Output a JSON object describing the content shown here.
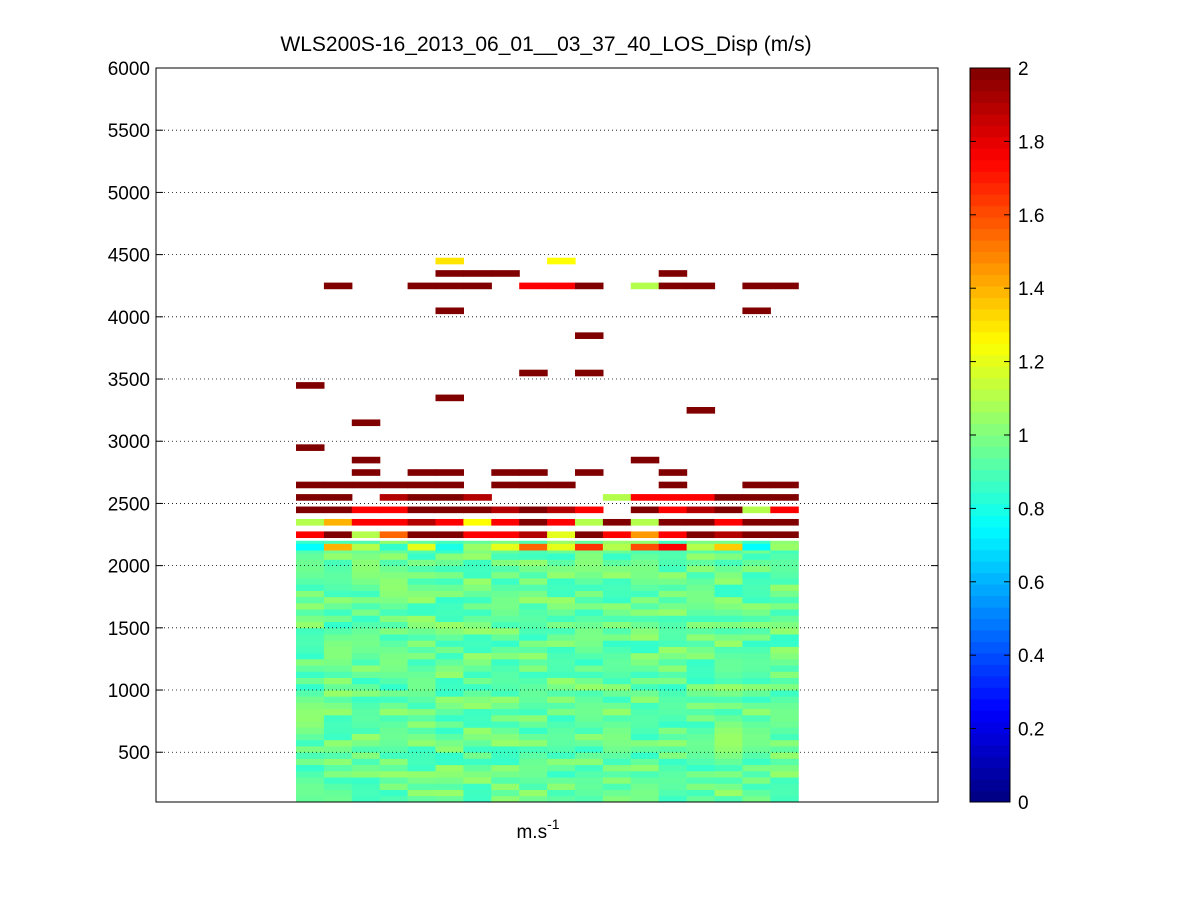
{
  "chart_data": {
    "type": "heatmap",
    "title": "WLS200S-16_2013_06_01__03_37_40_LOS_Disp (m/s)",
    "xlabel_base": "m.s",
    "xlabel_exp": "-1",
    "ylabel": "",
    "ylim": [
      100,
      6000
    ],
    "y_ticks": [
      "500",
      "1000",
      "1500",
      "2000",
      "2500",
      "3000",
      "3500",
      "4000",
      "4500",
      "5000",
      "5500",
      "6000"
    ],
    "grid": "horizontal dotted",
    "colormap": "jet",
    "clim": [
      0,
      2
    ],
    "colorbar_ticks": [
      "0",
      "0.2",
      "0.4",
      "0.6",
      "0.8",
      "1",
      "1.2",
      "1.4",
      "1.6",
      "1.8",
      "2"
    ],
    "columns": 18,
    "layer_thickness": 50,
    "dense_region": {
      "from": 100,
      "to": 2200,
      "typical_value": 0.95,
      "spread": 0.1
    },
    "cells": [
      {
        "col": 5,
        "y": 4450,
        "v": 1.3
      },
      {
        "col": 9,
        "y": 4450,
        "v": 1.25
      },
      {
        "col": 5,
        "y": 4350,
        "v": 2
      },
      {
        "col": 6,
        "y": 4350,
        "v": 2
      },
      {
        "col": 7,
        "y": 4350,
        "v": 2
      },
      {
        "col": 13,
        "y": 4350,
        "v": 2
      },
      {
        "col": 1,
        "y": 4250,
        "v": 2
      },
      {
        "col": 4,
        "y": 4250,
        "v": 2
      },
      {
        "col": 5,
        "y": 4250,
        "v": 2
      },
      {
        "col": 6,
        "y": 4250,
        "v": 2
      },
      {
        "col": 8,
        "y": 4250,
        "v": 1.75
      },
      {
        "col": 9,
        "y": 4250,
        "v": 1.75
      },
      {
        "col": 10,
        "y": 4250,
        "v": 2
      },
      {
        "col": 12,
        "y": 4250,
        "v": 1.1
      },
      {
        "col": 13,
        "y": 4250,
        "v": 2
      },
      {
        "col": 14,
        "y": 4250,
        "v": 2
      },
      {
        "col": 16,
        "y": 4250,
        "v": 2
      },
      {
        "col": 17,
        "y": 4250,
        "v": 2
      },
      {
        "col": 5,
        "y": 4050,
        "v": 2
      },
      {
        "col": 16,
        "y": 4050,
        "v": 2
      },
      {
        "col": 10,
        "y": 3850,
        "v": 2
      },
      {
        "col": 8,
        "y": 3550,
        "v": 2
      },
      {
        "col": 10,
        "y": 3550,
        "v": 2
      },
      {
        "col": 0,
        "y": 3450,
        "v": 2
      },
      {
        "col": 5,
        "y": 3350,
        "v": 2
      },
      {
        "col": 14,
        "y": 3250,
        "v": 2
      },
      {
        "col": 2,
        "y": 3150,
        "v": 2
      },
      {
        "col": 0,
        "y": 2950,
        "v": 2
      },
      {
        "col": 12,
        "y": 2850,
        "v": 2
      },
      {
        "col": 2,
        "y": 2850,
        "v": 2
      },
      {
        "col": 4,
        "y": 2750,
        "v": 2
      },
      {
        "col": 10,
        "y": 2750,
        "v": 2
      },
      {
        "col": 2,
        "y": 2750,
        "v": 2
      },
      {
        "col": 5,
        "y": 2750,
        "v": 2
      },
      {
        "col": 7,
        "y": 2750,
        "v": 2
      },
      {
        "col": 8,
        "y": 2750,
        "v": 2
      },
      {
        "col": 13,
        "y": 2750,
        "v": 2
      },
      {
        "col": 0,
        "y": 2650,
        "v": 2
      },
      {
        "col": 1,
        "y": 2650,
        "v": 2
      },
      {
        "col": 2,
        "y": 2650,
        "v": 2
      },
      {
        "col": 3,
        "y": 2650,
        "v": 2
      },
      {
        "col": 4,
        "y": 2650,
        "v": 2
      },
      {
        "col": 5,
        "y": 2650,
        "v": 2
      },
      {
        "col": 7,
        "y": 2650,
        "v": 2
      },
      {
        "col": 8,
        "y": 2650,
        "v": 2
      },
      {
        "col": 9,
        "y": 2650,
        "v": 2
      },
      {
        "col": 13,
        "y": 2650,
        "v": 2
      },
      {
        "col": 16,
        "y": 2650,
        "v": 2
      },
      {
        "col": 17,
        "y": 2650,
        "v": 2
      },
      {
        "col": 0,
        "y": 2550,
        "v": 2
      },
      {
        "col": 1,
        "y": 2550,
        "v": 2
      },
      {
        "col": 3,
        "y": 2550,
        "v": 1.9
      },
      {
        "col": 4,
        "y": 2550,
        "v": 2
      },
      {
        "col": 5,
        "y": 2550,
        "v": 2
      },
      {
        "col": 6,
        "y": 2550,
        "v": 1.9
      },
      {
        "col": 11,
        "y": 2550,
        "v": 1.1
      },
      {
        "col": 12,
        "y": 2550,
        "v": 1.75
      },
      {
        "col": 13,
        "y": 2550,
        "v": 1.75
      },
      {
        "col": 14,
        "y": 2550,
        "v": 1.75
      },
      {
        "col": 15,
        "y": 2550,
        "v": 2
      },
      {
        "col": 16,
        "y": 2550,
        "v": 2
      },
      {
        "col": 17,
        "y": 2550,
        "v": 2
      },
      {
        "col": 0,
        "y": 2450,
        "v": 2
      },
      {
        "col": 1,
        "y": 2450,
        "v": 2
      },
      {
        "col": 2,
        "y": 2450,
        "v": 1.75
      },
      {
        "col": 3,
        "y": 2450,
        "v": 1.75
      },
      {
        "col": 4,
        "y": 2450,
        "v": 2
      },
      {
        "col": 5,
        "y": 2450,
        "v": 2
      },
      {
        "col": 6,
        "y": 2450,
        "v": 2
      },
      {
        "col": 7,
        "y": 2450,
        "v": 1.9
      },
      {
        "col": 8,
        "y": 2450,
        "v": 2
      },
      {
        "col": 9,
        "y": 2450,
        "v": 1.9
      },
      {
        "col": 10,
        "y": 2450,
        "v": 1.75
      },
      {
        "col": 12,
        "y": 2450,
        "v": 2
      },
      {
        "col": 13,
        "y": 2450,
        "v": 1.75
      },
      {
        "col": 14,
        "y": 2450,
        "v": 1.9
      },
      {
        "col": 15,
        "y": 2450,
        "v": 2
      },
      {
        "col": 16,
        "y": 2450,
        "v": 1.1
      },
      {
        "col": 17,
        "y": 2450,
        "v": 1.75
      },
      {
        "col": 0,
        "y": 2350,
        "v": 1.1
      },
      {
        "col": 1,
        "y": 2350,
        "v": 1.4
      },
      {
        "col": 2,
        "y": 2350,
        "v": 1.75
      },
      {
        "col": 3,
        "y": 2350,
        "v": 1.75
      },
      {
        "col": 4,
        "y": 2350,
        "v": 1.9
      },
      {
        "col": 5,
        "y": 2350,
        "v": 1.75
      },
      {
        "col": 6,
        "y": 2350,
        "v": 1.25
      },
      {
        "col": 7,
        "y": 2350,
        "v": 1.75
      },
      {
        "col": 8,
        "y": 2350,
        "v": 2
      },
      {
        "col": 9,
        "y": 2350,
        "v": 1.75
      },
      {
        "col": 10,
        "y": 2350,
        "v": 1.1
      },
      {
        "col": 11,
        "y": 2350,
        "v": 2
      },
      {
        "col": 12,
        "y": 2350,
        "v": 1.1
      },
      {
        "col": 13,
        "y": 2350,
        "v": 2
      },
      {
        "col": 14,
        "y": 2350,
        "v": 2
      },
      {
        "col": 15,
        "y": 2350,
        "v": 1.75
      },
      {
        "col": 16,
        "y": 2350,
        "v": 2
      },
      {
        "col": 17,
        "y": 2350,
        "v": 2
      },
      {
        "col": 0,
        "y": 2250,
        "v": 1.75
      },
      {
        "col": 1,
        "y": 2250,
        "v": 2
      },
      {
        "col": 2,
        "y": 2250,
        "v": 1.1
      },
      {
        "col": 3,
        "y": 2250,
        "v": 1.55
      },
      {
        "col": 4,
        "y": 2250,
        "v": 2
      },
      {
        "col": 5,
        "y": 2250,
        "v": 2
      },
      {
        "col": 6,
        "y": 2250,
        "v": 1.75
      },
      {
        "col": 7,
        "y": 2250,
        "v": 1.75
      },
      {
        "col": 8,
        "y": 2250,
        "v": 1.9
      },
      {
        "col": 9,
        "y": 2250,
        "v": 1.2
      },
      {
        "col": 10,
        "y": 2250,
        "v": 2
      },
      {
        "col": 11,
        "y": 2250,
        "v": 1.75
      },
      {
        "col": 12,
        "y": 2250,
        "v": 1.45
      },
      {
        "col": 13,
        "y": 2250,
        "v": 1.75
      },
      {
        "col": 14,
        "y": 2250,
        "v": 2
      },
      {
        "col": 15,
        "y": 2250,
        "v": 1.9
      },
      {
        "col": 16,
        "y": 2250,
        "v": 2
      },
      {
        "col": 17,
        "y": 2250,
        "v": 2
      },
      {
        "col": 0,
        "y": 2150,
        "v": 0.75
      },
      {
        "col": 1,
        "y": 2150,
        "v": 1.4
      },
      {
        "col": 2,
        "y": 2150,
        "v": 1.1
      },
      {
        "col": 3,
        "y": 2150,
        "v": 0.85
      },
      {
        "col": 4,
        "y": 2150,
        "v": 1.2
      },
      {
        "col": 5,
        "y": 2150,
        "v": 0.8
      },
      {
        "col": 6,
        "y": 2150,
        "v": 1.05
      },
      {
        "col": 7,
        "y": 2150,
        "v": 1.2
      },
      {
        "col": 8,
        "y": 2150,
        "v": 1.55
      },
      {
        "col": 9,
        "y": 2150,
        "v": 1.2
      },
      {
        "col": 10,
        "y": 2150,
        "v": 1.65
      },
      {
        "col": 11,
        "y": 2150,
        "v": 1.1
      },
      {
        "col": 12,
        "y": 2150,
        "v": 1.6
      },
      {
        "col": 13,
        "y": 2150,
        "v": 1.75
      },
      {
        "col": 14,
        "y": 2150,
        "v": 1.1
      },
      {
        "col": 15,
        "y": 2150,
        "v": 1.35
      },
      {
        "col": 16,
        "y": 2150,
        "v": 0.75
      },
      {
        "col": 17,
        "y": 2150,
        "v": 1.05
      }
    ]
  }
}
